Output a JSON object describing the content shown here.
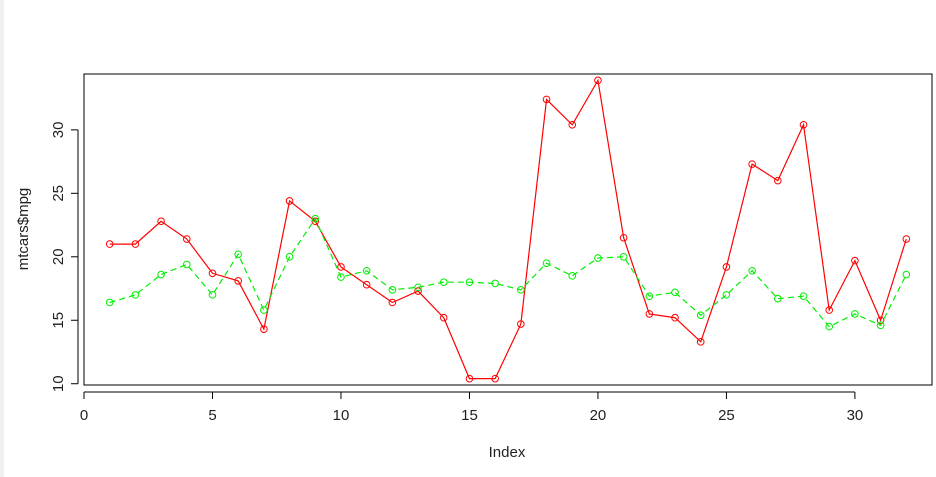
{
  "chart_data": {
    "type": "line",
    "xlabel": "Index",
    "ylabel": "mtcars$mpg",
    "xlim": [
      0,
      33
    ],
    "ylim": [
      9.9,
      34.4
    ],
    "x_ticks": [
      0,
      5,
      10,
      15,
      20,
      25,
      30
    ],
    "y_ticks": [
      10,
      15,
      20,
      25,
      30
    ],
    "grid": false,
    "x": [
      1,
      2,
      3,
      4,
      5,
      6,
      7,
      8,
      9,
      10,
      11,
      12,
      13,
      14,
      15,
      16,
      17,
      18,
      19,
      20,
      21,
      22,
      23,
      24,
      25,
      26,
      27,
      28,
      29,
      30,
      31,
      32
    ],
    "series": [
      {
        "color": "#ff0000",
        "line_style": "solid",
        "marker": "open-circle",
        "values": [
          21.0,
          21.0,
          22.8,
          21.4,
          18.7,
          18.1,
          14.3,
          24.4,
          22.8,
          19.2,
          17.8,
          16.4,
          17.3,
          15.2,
          10.4,
          10.4,
          14.7,
          32.4,
          30.4,
          33.9,
          21.5,
          15.5,
          15.2,
          13.3,
          19.2,
          27.3,
          26.0,
          30.4,
          15.8,
          19.7,
          15.0,
          21.4
        ]
      },
      {
        "color": "#00ee00",
        "line_style": "dashed",
        "marker": "open-circle",
        "values": [
          16.4,
          17.0,
          18.6,
          19.4,
          17.0,
          20.2,
          15.8,
          20.0,
          23.0,
          18.4,
          18.9,
          17.4,
          17.6,
          18.0,
          18.0,
          17.9,
          17.4,
          19.5,
          18.5,
          19.9,
          20.0,
          16.9,
          17.2,
          15.4,
          17.0,
          18.9,
          16.7,
          16.9,
          14.5,
          15.5,
          14.6,
          18.6
        ]
      }
    ]
  }
}
